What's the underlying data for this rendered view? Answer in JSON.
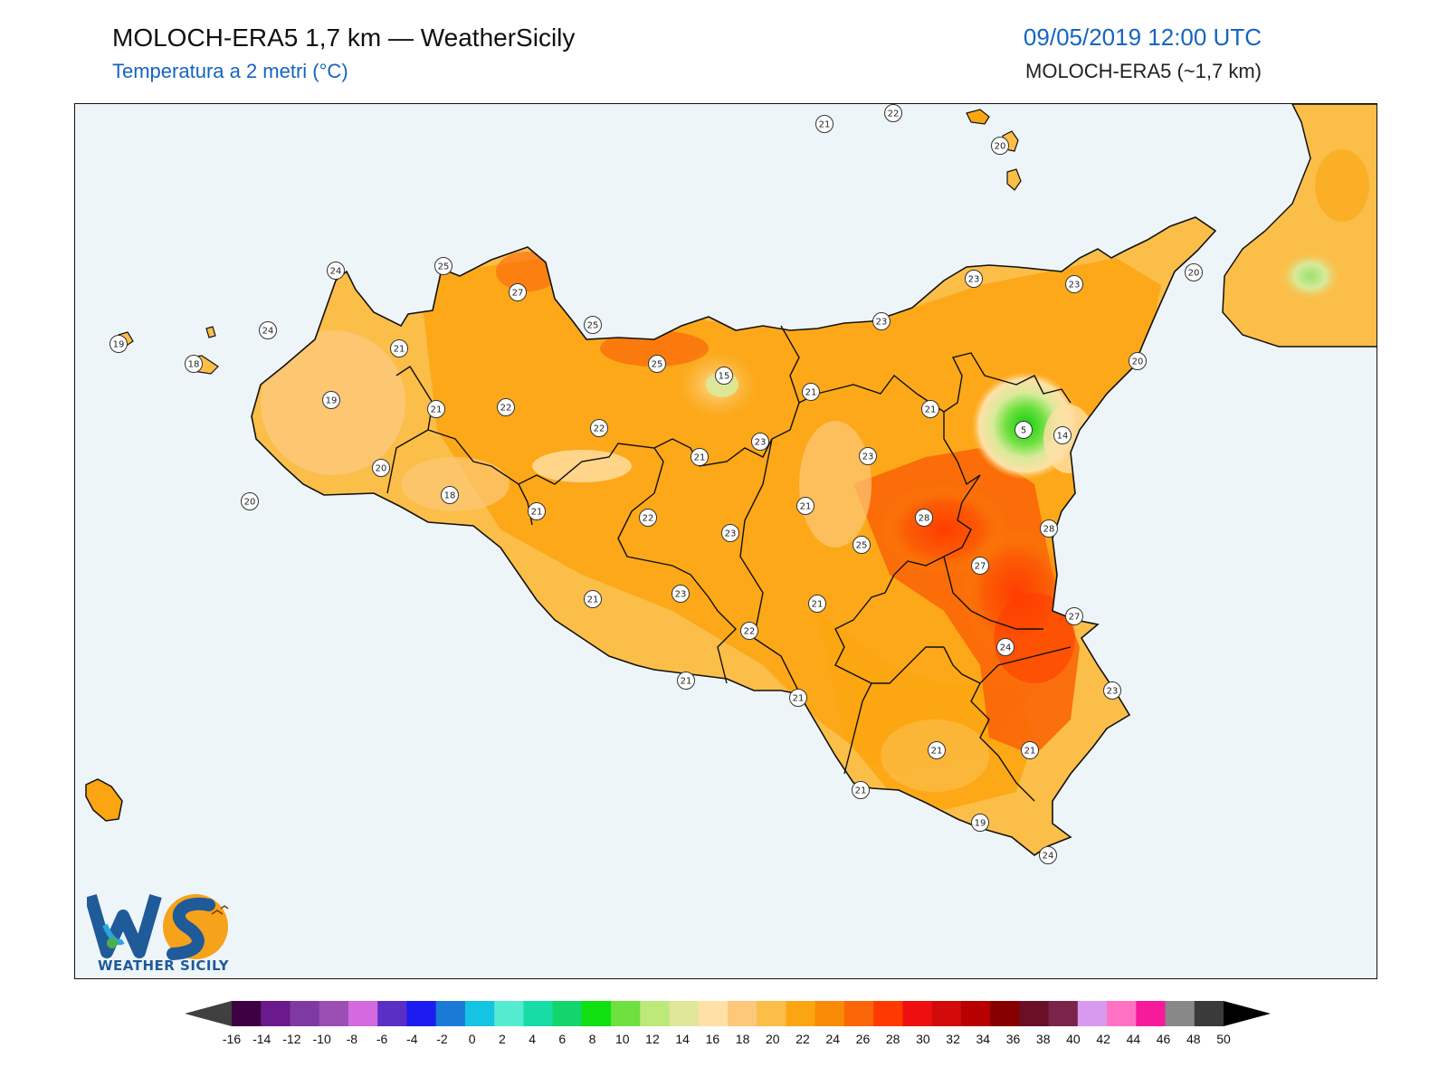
{
  "header": {
    "title": "MOLOCH-ERA5 1,7 km — WeatherSicily",
    "subtitle": "Temperatura a 2 metri (°C)",
    "datetime": "09/05/2019 12:00 UTC",
    "model": "MOLOCH-ERA5 (~1,7 km)"
  },
  "logo": {
    "text": "WEATHER SICILY",
    "letters": "WS"
  },
  "colorbar": {
    "ticks": [
      "-16",
      "-14",
      "-12",
      "-10",
      "-8",
      "-6",
      "-4",
      "-2",
      "0",
      "2",
      "4",
      "6",
      "8",
      "10",
      "12",
      "14",
      "16",
      "18",
      "20",
      "22",
      "24",
      "26",
      "28",
      "30",
      "32",
      "34",
      "36",
      "38",
      "40",
      "42",
      "44",
      "46",
      "48",
      "50"
    ],
    "colors": [
      "#3d0042",
      "#6a1a8c",
      "#7e3aa1",
      "#9b4fb4",
      "#d46ae0",
      "#5a2fc6",
      "#1c1cf0",
      "#1a7ad6",
      "#15c3e3",
      "#54ecd0",
      "#18dca6",
      "#12d66c",
      "#10e010",
      "#6ee040",
      "#bde87a",
      "#e0e69a",
      "#ffe0a6",
      "#fdc879",
      "#fbbe48",
      "#fca512",
      "#f98a05",
      "#fb6608",
      "#ff3a00",
      "#ee1010",
      "#d20a0a",
      "#b70000",
      "#860000",
      "#6a0f26",
      "#7a244a",
      "#d79aef",
      "#ff72c2",
      "#f71a9a",
      "#888888",
      "#3a3a3a"
    ],
    "under_color": "#404040",
    "over_color": "#000000"
  },
  "stations": [
    {
      "value": "21"
    },
    {
      "value": "22"
    },
    {
      "value": "20"
    },
    {
      "value": "24"
    },
    {
      "value": "25"
    },
    {
      "value": "27"
    },
    {
      "value": "23"
    },
    {
      "value": "23"
    },
    {
      "value": "20"
    },
    {
      "value": "19"
    },
    {
      "value": "18"
    },
    {
      "value": "24"
    },
    {
      "value": "21"
    },
    {
      "value": "25"
    },
    {
      "value": "23"
    },
    {
      "value": "20"
    },
    {
      "value": "19"
    },
    {
      "value": "21"
    },
    {
      "value": "22"
    },
    {
      "value": "25"
    },
    {
      "value": "15"
    },
    {
      "value": "21"
    },
    {
      "value": "21"
    },
    {
      "value": "5"
    },
    {
      "value": "14"
    },
    {
      "value": "20"
    },
    {
      "value": "22"
    },
    {
      "value": "23"
    },
    {
      "value": "23"
    },
    {
      "value": "21"
    },
    {
      "value": "20"
    },
    {
      "value": "18"
    },
    {
      "value": "21"
    },
    {
      "value": "22"
    },
    {
      "value": "23"
    },
    {
      "value": "21"
    },
    {
      "value": "28"
    },
    {
      "value": "28"
    },
    {
      "value": "25"
    },
    {
      "value": "27"
    },
    {
      "value": "21"
    },
    {
      "value": "23"
    },
    {
      "value": "21"
    },
    {
      "value": "22"
    },
    {
      "value": "27"
    },
    {
      "value": "24"
    },
    {
      "value": "21"
    },
    {
      "value": "21"
    },
    {
      "value": "23"
    },
    {
      "value": "21"
    },
    {
      "value": "21"
    },
    {
      "value": "21"
    },
    {
      "value": "19"
    },
    {
      "value": "24"
    }
  ]
}
